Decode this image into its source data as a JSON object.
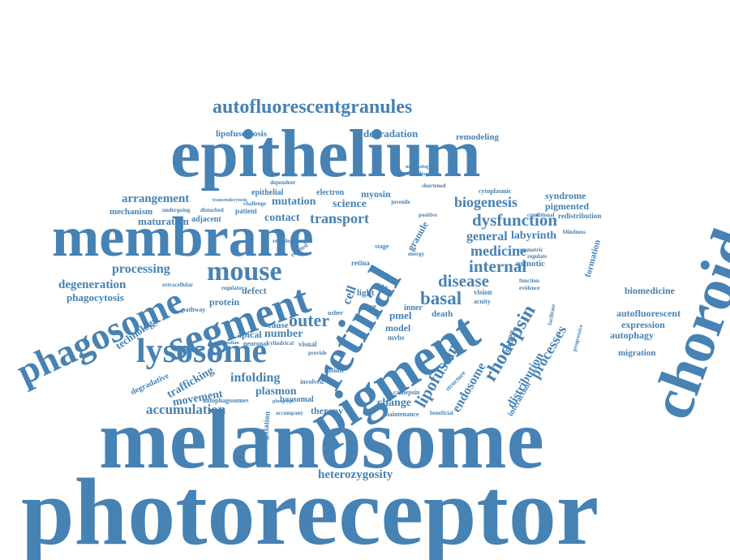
{
  "word_cloud": {
    "color": "#4682B4",
    "words": [
      "photoreceptor",
      "melanosome",
      "epithelium",
      "membrane",
      "choroideremia",
      "pigment",
      "retinal",
      "segment",
      "phagosome",
      "lysosome",
      "mouse",
      "autofluorescentgranules",
      "heterozygosity",
      "accumulation",
      "rhodopsin",
      "dysfunction",
      "basal",
      "disease",
      "lipofuscin",
      "outer",
      "internal",
      "medicine",
      "biogenesis",
      "general",
      "labyrinth",
      "processes",
      "distribution",
      "endosome",
      "transport",
      "arrangement",
      "mechanism",
      "maturation",
      "processing",
      "degeneration",
      "phagocytosis",
      "technology",
      "protein",
      "defect",
      "contact",
      "mutation",
      "science",
      "myosin",
      "epithelial",
      "electron",
      "degradation",
      "remodeling",
      "lipofuscinosis",
      "syndrome",
      "pigmented",
      "cytoplasmic",
      "biomedicine",
      "autofluorescent",
      "expression",
      "autophagy",
      "migration",
      "formation",
      "osmotic",
      "trafficking",
      "infolding",
      "movement",
      "plasmon",
      "therapy",
      "change",
      "number",
      "apical",
      "cause",
      "model",
      "pmel",
      "cell",
      "granule",
      "interaction",
      "rab27a",
      "regulation",
      "degradative",
      "autophagosomes",
      "fusion",
      "light",
      "eye",
      "death",
      "inner",
      "vision",
      "lysosomal",
      "cathepsin",
      "maintenance",
      "beneficial",
      "accompany",
      "neuronal",
      "visual",
      "adjacent",
      "undergoing",
      "patient",
      "pathway",
      "role",
      "retina",
      "stage",
      "energy",
      "symmetric",
      "regulate",
      "redistribution",
      "conditional",
      "evidence",
      "function",
      "acuity",
      "structure",
      "shortened",
      "positive",
      "juvenile",
      "dependent",
      "challenge",
      "transendocytosis",
      "morphology",
      "modelling",
      "mammalian",
      "extracellular",
      "related",
      "revealed",
      "phenotype",
      "involved",
      "provide",
      "cylindrical",
      "mvbs",
      "usher",
      "progressive",
      "facilitate",
      "regulator",
      "blindness",
      "disturbed"
    ]
  }
}
